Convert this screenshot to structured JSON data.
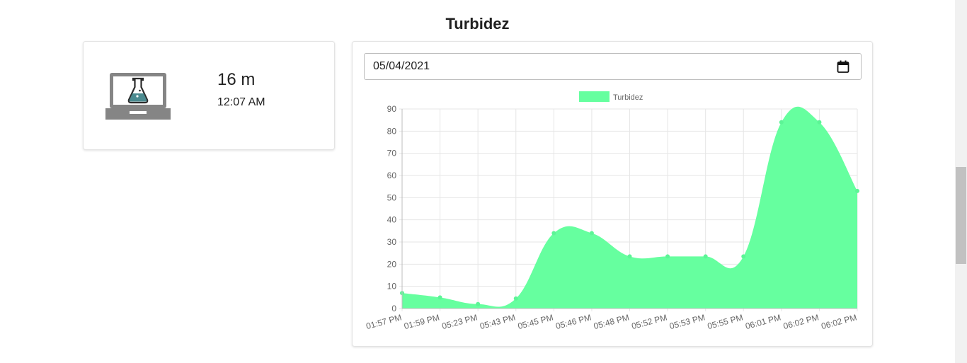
{
  "page": {
    "title": "Turbidez"
  },
  "summary_card": {
    "icon": "laptop-flask-icon",
    "duration": "16 m",
    "time": "12:07 AM"
  },
  "date_picker": {
    "value": "05/04/2021",
    "icon": "calendar-icon"
  },
  "colors": {
    "series_fill": "#66ff9f",
    "series_point": "#5cf596",
    "grid": "#e6e6e6",
    "tick_text": "#666666",
    "icon_gray": "#858585",
    "icon_teal": "#4a8a8f"
  },
  "chart_data": {
    "type": "area",
    "legend": {
      "labels": [
        "Turbidez"
      ],
      "position": "top"
    },
    "x": [
      "01:57 PM",
      "01:59 PM",
      "05:23 PM",
      "05:43 PM",
      "05:45 PM",
      "05:46 PM",
      "05:48 PM",
      "05:52 PM",
      "05:53 PM",
      "05:55 PM",
      "06:01 PM",
      "06:02 PM",
      "06:02 PM"
    ],
    "series": [
      {
        "name": "Turbidez",
        "values": [
          7,
          5,
          2,
          4.5,
          34,
          34,
          23.5,
          23.5,
          23.5,
          23.5,
          84,
          84,
          53
        ]
      }
    ],
    "ylim": [
      0,
      90
    ],
    "yticks": [
      0,
      10,
      20,
      30,
      40,
      50,
      60,
      70,
      80,
      90
    ],
    "grid": true,
    "smooth": true
  }
}
